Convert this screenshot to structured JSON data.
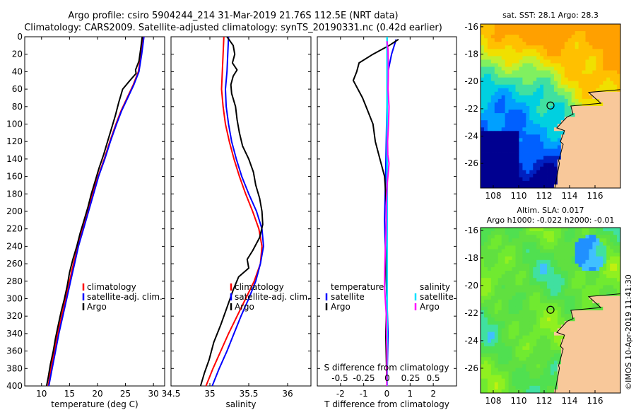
{
  "title_line1": "Argo profile: csiro 5904244_214 31-Mar-2019 21.76S 112.5E (NRT data)",
  "title_line2": "Climatology: CARS2009. Satellite-adjusted climatology: synTS_20190331.nc (0.42d earlier)",
  "credit": "©IMOS 10-Apr-2019 11:41:30",
  "colors": {
    "climatology": "#ff0000",
    "satellite": "#0000ff",
    "argo": "#000000",
    "sal_sat": "#00e0ff",
    "sal_argo": "#ff00ff"
  },
  "chart_data": [
    {
      "type": "line",
      "title": "",
      "xlabel": "temperature (deg C)",
      "ylabel": "",
      "xlim": [
        7,
        32
      ],
      "ylim": [
        400,
        0
      ],
      "xticks": [
        10,
        15,
        20,
        25,
        30
      ],
      "yticks": [
        0,
        20,
        40,
        60,
        80,
        100,
        120,
        140,
        160,
        180,
        200,
        220,
        240,
        260,
        280,
        300,
        320,
        340,
        360,
        380,
        400
      ],
      "legend": {
        "position": "lower-right",
        "entries": [
          "climatology",
          "satellite-adj. clim.",
          "Argo"
        ]
      },
      "series": [
        {
          "name": "climatology",
          "color": "#ff0000",
          "points": [
            [
              28.2,
              0
            ],
            [
              27.8,
              20
            ],
            [
              27.3,
              40
            ],
            [
              26.4,
              55
            ],
            [
              25.3,
              70
            ],
            [
              24.2,
              85
            ],
            [
              23.3,
              100
            ],
            [
              22.2,
              120
            ],
            [
              21.2,
              140
            ],
            [
              20.1,
              160
            ],
            [
              19.1,
              180
            ],
            [
              18.2,
              200
            ],
            [
              17.3,
              220
            ],
            [
              16.5,
              240
            ],
            [
              15.7,
              260
            ],
            [
              15,
              280
            ],
            [
              14.3,
              300
            ],
            [
              13.6,
              320
            ],
            [
              12.9,
              340
            ],
            [
              12.3,
              360
            ],
            [
              11.7,
              380
            ],
            [
              11.2,
              400
            ]
          ]
        },
        {
          "name": "satellite-adj. clim.",
          "color": "#0000ff",
          "points": [
            [
              28.3,
              0
            ],
            [
              27.9,
              20
            ],
            [
              27.4,
              40
            ],
            [
              26.5,
              55
            ],
            [
              25.4,
              70
            ],
            [
              24.3,
              85
            ],
            [
              23.4,
              100
            ],
            [
              22.3,
              120
            ],
            [
              21.3,
              140
            ],
            [
              20.2,
              160
            ],
            [
              19.3,
              180
            ],
            [
              18.4,
              200
            ],
            [
              17.5,
              220
            ],
            [
              16.6,
              240
            ],
            [
              15.9,
              260
            ],
            [
              15.2,
              280
            ],
            [
              14.5,
              300
            ],
            [
              13.8,
              320
            ],
            [
              13.1,
              340
            ],
            [
              12.5,
              360
            ],
            [
              11.9,
              380
            ],
            [
              11.3,
              400
            ]
          ]
        },
        {
          "name": "Argo",
          "color": "#000000",
          "points": [
            [
              28,
              0
            ],
            [
              27.7,
              15
            ],
            [
              27.4,
              28
            ],
            [
              26.8,
              38
            ],
            [
              26.9,
              42
            ],
            [
              25.8,
              50
            ],
            [
              24.5,
              60
            ],
            [
              23.8,
              75
            ],
            [
              23.2,
              90
            ],
            [
              22.5,
              105
            ],
            [
              21.8,
              120
            ],
            [
              21.1,
              135
            ],
            [
              20.3,
              150
            ],
            [
              19.6,
              165
            ],
            [
              18.9,
              180
            ],
            [
              18.3,
              195
            ],
            [
              17.6,
              210
            ],
            [
              16.9,
              225
            ],
            [
              16.3,
              240
            ],
            [
              15.6,
              255
            ],
            [
              15,
              270
            ],
            [
              14.6,
              285
            ],
            [
              14.1,
              300
            ],
            [
              13.5,
              315
            ],
            [
              13,
              330
            ],
            [
              12.5,
              345
            ],
            [
              12.1,
              360
            ],
            [
              11.6,
              375
            ],
            [
              11.2,
              390
            ],
            [
              10.9,
              400
            ]
          ]
        }
      ]
    },
    {
      "type": "line",
      "title": "",
      "xlabel": "salinity",
      "ylabel": "",
      "xlim": [
        34.5,
        36.3
      ],
      "ylim": [
        400,
        0
      ],
      "xticks": [
        34.5,
        35,
        35.5,
        36
      ],
      "legend": {
        "position": "lower-right",
        "entries": [
          "climatology",
          "satellite-adj. clim.",
          "Argo"
        ]
      },
      "series": [
        {
          "name": "climatology",
          "color": "#ff0000",
          "points": [
            [
              35.18,
              0
            ],
            [
              35.17,
              20
            ],
            [
              35.16,
              40
            ],
            [
              35.15,
              60
            ],
            [
              35.17,
              80
            ],
            [
              35.2,
              100
            ],
            [
              35.25,
              120
            ],
            [
              35.31,
              140
            ],
            [
              35.38,
              160
            ],
            [
              35.46,
              180
            ],
            [
              35.55,
              200
            ],
            [
              35.63,
              220
            ],
            [
              35.67,
              240
            ],
            [
              35.65,
              260
            ],
            [
              35.57,
              280
            ],
            [
              35.46,
              300
            ],
            [
              35.35,
              320
            ],
            [
              35.24,
              340
            ],
            [
              35.14,
              360
            ],
            [
              35.04,
              380
            ],
            [
              34.95,
              400
            ]
          ]
        },
        {
          "name": "satellite-adj. clim.",
          "color": "#0000ff",
          "points": [
            [
              35.24,
              0
            ],
            [
              35.23,
              20
            ],
            [
              35.22,
              40
            ],
            [
              35.2,
              60
            ],
            [
              35.21,
              80
            ],
            [
              35.24,
              100
            ],
            [
              35.28,
              120
            ],
            [
              35.34,
              140
            ],
            [
              35.41,
              160
            ],
            [
              35.5,
              180
            ],
            [
              35.6,
              200
            ],
            [
              35.67,
              220
            ],
            [
              35.69,
              240
            ],
            [
              35.65,
              260
            ],
            [
              35.59,
              280
            ],
            [
              35.5,
              300
            ],
            [
              35.4,
              320
            ],
            [
              35.31,
              340
            ],
            [
              35.22,
              360
            ],
            [
              35.12,
              380
            ],
            [
              35.03,
              400
            ]
          ]
        },
        {
          "name": "Argo",
          "color": "#000000",
          "points": [
            [
              35.22,
              0
            ],
            [
              35.3,
              10
            ],
            [
              35.32,
              20
            ],
            [
              35.29,
              30
            ],
            [
              35.35,
              38
            ],
            [
              35.3,
              45
            ],
            [
              35.27,
              55
            ],
            [
              35.28,
              65
            ],
            [
              35.33,
              80
            ],
            [
              35.35,
              95
            ],
            [
              35.38,
              110
            ],
            [
              35.42,
              125
            ],
            [
              35.5,
              140
            ],
            [
              35.56,
              155
            ],
            [
              35.59,
              170
            ],
            [
              35.64,
              185
            ],
            [
              35.67,
              200
            ],
            [
              35.68,
              215
            ],
            [
              35.64,
              230
            ],
            [
              35.55,
              245
            ],
            [
              35.48,
              255
            ],
            [
              35.5,
              265
            ],
            [
              35.37,
              275
            ],
            [
              35.3,
              290
            ],
            [
              35.22,
              310
            ],
            [
              35.14,
              330
            ],
            [
              35.05,
              350
            ],
            [
              34.99,
              370
            ],
            [
              34.93,
              385
            ],
            [
              34.88,
              400
            ]
          ]
        }
      ]
    },
    {
      "type": "line",
      "title": "",
      "xlabel": "T difference from climatology",
      "ylabel": "",
      "xlim": [
        -3,
        3
      ],
      "ylim": [
        400,
        0
      ],
      "xticks": [
        -2,
        -1,
        0,
        1,
        2
      ],
      "secondary_xlabel": "S difference from climatology",
      "secondary_xticks": [
        "-0.5",
        "-0.25",
        "0",
        "0.25",
        "0.5"
      ],
      "legend": {
        "position": "lower",
        "temperature_label": "temperature",
        "salinity_label": "salinity",
        "temperature_entries": [
          "satellite",
          "Argo"
        ],
        "salinity_entries": [
          "satellite",
          "Argo"
        ]
      },
      "series": [
        {
          "name": "temperature satellite",
          "color": "#0000ff",
          "points": [
            [
              0.4,
              3
            ],
            [
              0.2,
              20
            ],
            [
              0.05,
              40
            ],
            [
              0,
              80
            ],
            [
              -0.05,
              150
            ],
            [
              -0.1,
              210
            ],
            [
              -0.05,
              260
            ],
            [
              0,
              300
            ],
            [
              0.05,
              340
            ],
            [
              0,
              400
            ]
          ]
        },
        {
          "name": "temperature Argo",
          "color": "#000000",
          "points": [
            [
              0.5,
              3
            ],
            [
              0.1,
              10
            ],
            [
              -0.6,
              20
            ],
            [
              -1.2,
              30
            ],
            [
              -1.3,
              40
            ],
            [
              -1.45,
              50
            ],
            [
              -1.05,
              70
            ],
            [
              -0.9,
              80
            ],
            [
              -0.6,
              100
            ],
            [
              -0.5,
              120
            ],
            [
              -0.3,
              140
            ],
            [
              -0.1,
              160
            ],
            [
              0,
              200
            ],
            [
              -0.05,
              260
            ],
            [
              0,
              300
            ],
            [
              -0.05,
              340
            ],
            [
              0,
              400
            ]
          ]
        },
        {
          "name": "salinity satellite",
          "color": "#00e0ff",
          "points": [
            [
              0.01,
              0
            ],
            [
              0.01,
              100
            ],
            [
              0.01,
              200
            ],
            [
              0.01,
              300
            ],
            [
              0.01,
              400
            ]
          ]
        },
        {
          "name": "salinity Argo",
          "color": "#ff00ff",
          "points": [
            [
              0,
              5
            ],
            [
              0.05,
              15
            ],
            [
              0.06,
              30
            ],
            [
              0.06,
              45
            ],
            [
              0.05,
              60
            ],
            [
              0.09,
              80
            ],
            [
              0.07,
              100
            ],
            [
              0.03,
              120
            ],
            [
              0.04,
              135
            ],
            [
              0.09,
              145
            ],
            [
              0.06,
              155
            ],
            [
              0.01,
              170
            ],
            [
              -0.02,
              190
            ],
            [
              -0.03,
              210
            ],
            [
              -0.04,
              225
            ],
            [
              -0.07,
              245
            ],
            [
              -0.09,
              265
            ],
            [
              -0.1,
              285
            ],
            [
              -0.06,
              305
            ],
            [
              -0.02,
              320
            ],
            [
              -0.02,
              340
            ],
            [
              0,
              360
            ],
            [
              0,
              380
            ],
            [
              0,
              400
            ]
          ]
        }
      ]
    },
    {
      "type": "heatmap",
      "title": "sat. SST: 28.1 Argo: 28.3",
      "xticks": [
        108,
        110,
        112,
        114,
        116
      ],
      "yticks": [
        -16,
        -18,
        -20,
        -22,
        -24,
        -26
      ],
      "xlim": [
        107,
        118
      ],
      "ylim": [
        -27.8,
        -15.8
      ],
      "argo_position": [
        112.5,
        -21.76
      ]
    },
    {
      "type": "heatmap",
      "title": "Altim. SLA: 0.017",
      "subtitle": "Argo h1000: -0.022 h2000: -0.01",
      "xticks": [
        108,
        110,
        112,
        114,
        116
      ],
      "yticks": [
        -16,
        -18,
        -20,
        -22,
        -24,
        -26
      ],
      "xlim": [
        107,
        118
      ],
      "ylim": [
        -27.8,
        -15.8
      ],
      "argo_position": [
        112.5,
        -21.76
      ]
    }
  ]
}
